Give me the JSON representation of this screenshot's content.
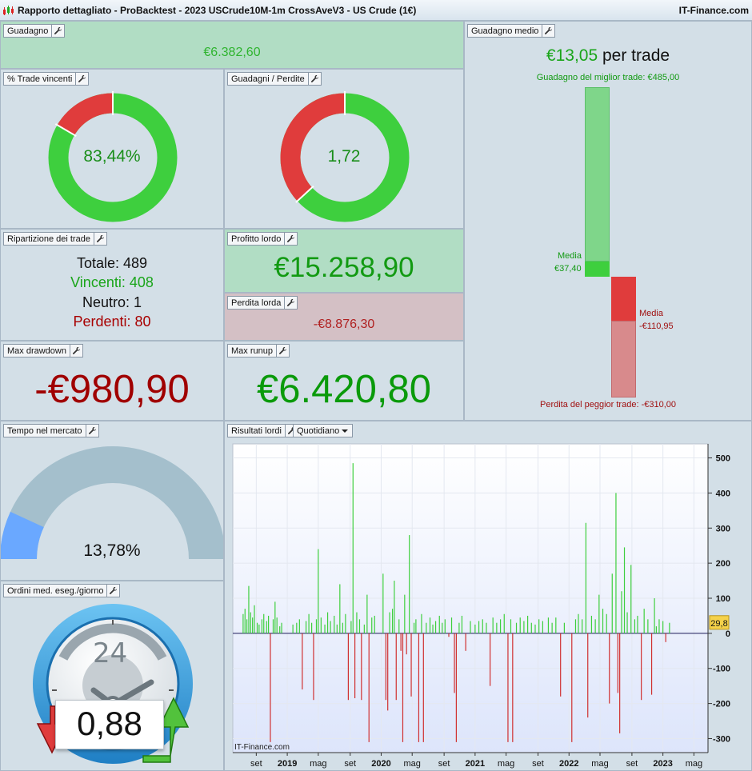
{
  "window": {
    "title": "Rapporto dettagliato - ProBacktest - 2023 USCrude10M-1m CrossAveV3 - US Crude (1€)",
    "brand": "IT-Finance.com"
  },
  "guadagno": {
    "label": "Guadagno",
    "value": "€6.382,60"
  },
  "trade_vincenti": {
    "label": "% Trade vincenti",
    "value": "83,44%",
    "win_fraction": 0.8344
  },
  "guadagni_perdite": {
    "label": "Guadagni / Perdite",
    "value": "1,72",
    "green_fraction": 0.632
  },
  "guadagno_medio": {
    "label": "Guadagno medio",
    "value": "€13,05",
    "suffix": "per trade",
    "best_label": "Guadagno del miglior trade: €485,00",
    "worst_label": "Perdita del peggior trade: -€310,00",
    "media_gain_label": "Media",
    "media_gain_value": "€37,40",
    "media_loss_label": "Media",
    "media_loss_value": "-€110,95",
    "best": 485,
    "avg_gain": 37.4,
    "avg_loss": -110.95,
    "worst": -310
  },
  "ripartizione": {
    "label": "Ripartizione dei trade",
    "totale": "Totale: 489",
    "vincenti": "Vincenti: 408",
    "neutro": "Neutro: 1",
    "perdenti": "Perdenti: 80"
  },
  "profitto_lordo": {
    "label": "Profitto lordo",
    "value": "€15.258,90"
  },
  "perdita_lorda": {
    "label": "Perdita lorda",
    "value": "-€8.876,30"
  },
  "max_drawdown": {
    "label": "Max drawdown",
    "value": "-€980,90"
  },
  "max_runup": {
    "label": "Max runup",
    "value": "€6.420,80"
  },
  "tempo_mercato": {
    "label": "Tempo nel mercato",
    "value": "13,78%",
    "fraction": 0.1378
  },
  "ordini": {
    "label": "Ordini med. eseg./giorno",
    "value": "0,88",
    "clock_number": "24"
  },
  "risultati": {
    "label": "Risultati lordi",
    "period": "Quotidiano",
    "watermark": "IT-Finance.com"
  },
  "colors": {
    "green": "#3ecf3e",
    "red": "#e03c3c",
    "dark_green": "#0a9a0a",
    "dark_red": "#a00000",
    "blue": "#6aa8ff",
    "gauge": "#a4bfcc"
  },
  "chart_data": {
    "type": "bar",
    "title": "",
    "ylim": [
      -340,
      540
    ],
    "yticks": [
      500,
      400,
      300,
      200,
      100,
      0,
      -100,
      -200,
      -300
    ],
    "ytick_labels": [
      "500",
      "400",
      "300",
      "200",
      "100",
      "0",
      "-100",
      "-200",
      "-300"
    ],
    "last_value": "29,8",
    "x_ticks": [
      {
        "label": "set",
        "bold": false,
        "t": 2018.67
      },
      {
        "label": "2019",
        "bold": true,
        "t": 2019.0
      },
      {
        "label": "mag",
        "bold": false,
        "t": 2019.33
      },
      {
        "label": "set",
        "bold": false,
        "t": 2019.67
      },
      {
        "label": "2020",
        "bold": true,
        "t": 2020.0
      },
      {
        "label": "mag",
        "bold": false,
        "t": 2020.33
      },
      {
        "label": "set",
        "bold": false,
        "t": 2020.67
      },
      {
        "label": "2021",
        "bold": true,
        "t": 2021.0
      },
      {
        "label": "mag",
        "bold": false,
        "t": 2021.33
      },
      {
        "label": "set",
        "bold": false,
        "t": 2021.67
      },
      {
        "label": "2022",
        "bold": true,
        "t": 2022.0
      },
      {
        "label": "mag",
        "bold": false,
        "t": 2022.33
      },
      {
        "label": "set",
        "bold": false,
        "t": 2022.67
      },
      {
        "label": "2023",
        "bold": true,
        "t": 2023.0
      },
      {
        "label": "mag",
        "bold": false,
        "t": 2023.33
      }
    ],
    "x_range": [
      2018.42,
      2023.48
    ],
    "points": [
      [
        2018.53,
        55
      ],
      [
        2018.55,
        70
      ],
      [
        2018.57,
        40
      ],
      [
        2018.59,
        135
      ],
      [
        2018.61,
        60
      ],
      [
        2018.63,
        45
      ],
      [
        2018.65,
        80
      ],
      [
        2018.68,
        30
      ],
      [
        2018.7,
        25
      ],
      [
        2018.73,
        40
      ],
      [
        2018.75,
        55
      ],
      [
        2018.78,
        35
      ],
      [
        2018.8,
        50
      ],
      [
        2018.82,
        -310
      ],
      [
        2018.85,
        40
      ],
      [
        2018.87,
        90
      ],
      [
        2018.89,
        45
      ],
      [
        2018.92,
        20
      ],
      [
        2018.94,
        30
      ],
      [
        2019.06,
        25
      ],
      [
        2019.1,
        30
      ],
      [
        2019.13,
        40
      ],
      [
        2019.16,
        -160
      ],
      [
        2019.2,
        35
      ],
      [
        2019.23,
        55
      ],
      [
        2019.26,
        30
      ],
      [
        2019.28,
        -190
      ],
      [
        2019.31,
        40
      ],
      [
        2019.33,
        240
      ],
      [
        2019.36,
        45
      ],
      [
        2019.4,
        25
      ],
      [
        2019.43,
        60
      ],
      [
        2019.46,
        35
      ],
      [
        2019.5,
        50
      ],
      [
        2019.53,
        25
      ],
      [
        2019.56,
        140
      ],
      [
        2019.59,
        30
      ],
      [
        2019.62,
        55
      ],
      [
        2019.65,
        -190
      ],
      [
        2019.68,
        35
      ],
      [
        2019.7,
        485
      ],
      [
        2019.72,
        -185
      ],
      [
        2019.74,
        60
      ],
      [
        2019.77,
        40
      ],
      [
        2019.79,
        -190
      ],
      [
        2019.82,
        25
      ],
      [
        2019.85,
        110
      ],
      [
        2019.87,
        -310
      ],
      [
        2019.9,
        45
      ],
      [
        2019.93,
        50
      ],
      [
        2020.02,
        170
      ],
      [
        2020.05,
        -190
      ],
      [
        2020.07,
        -220
      ],
      [
        2020.09,
        60
      ],
      [
        2020.12,
        70
      ],
      [
        2020.14,
        150
      ],
      [
        2020.16,
        -190
      ],
      [
        2020.19,
        40
      ],
      [
        2020.21,
        -50
      ],
      [
        2020.23,
        -310
      ],
      [
        2020.25,
        110
      ],
      [
        2020.27,
        -60
      ],
      [
        2020.3,
        280
      ],
      [
        2020.32,
        -180
      ],
      [
        2020.35,
        30
      ],
      [
        2020.37,
        40
      ],
      [
        2020.4,
        -310
      ],
      [
        2020.43,
        55
      ],
      [
        2020.45,
        -310
      ],
      [
        2020.48,
        30
      ],
      [
        2020.52,
        45
      ],
      [
        2020.55,
        25
      ],
      [
        2020.58,
        35
      ],
      [
        2020.62,
        50
      ],
      [
        2020.65,
        30
      ],
      [
        2020.68,
        40
      ],
      [
        2020.72,
        -10
      ],
      [
        2020.75,
        45
      ],
      [
        2020.78,
        -170
      ],
      [
        2020.8,
        -310
      ],
      [
        2020.83,
        30
      ],
      [
        2020.86,
        50
      ],
      [
        2020.9,
        -50
      ],
      [
        2020.95,
        35
      ],
      [
        2021.0,
        25
      ],
      [
        2021.04,
        35
      ],
      [
        2021.08,
        40
      ],
      [
        2021.12,
        30
      ],
      [
        2021.16,
        -150
      ],
      [
        2021.19,
        45
      ],
      [
        2021.23,
        30
      ],
      [
        2021.27,
        40
      ],
      [
        2021.31,
        55
      ],
      [
        2021.35,
        -310
      ],
      [
        2021.38,
        40
      ],
      [
        2021.4,
        -310
      ],
      [
        2021.44,
        30
      ],
      [
        2021.48,
        45
      ],
      [
        2021.52,
        35
      ],
      [
        2021.56,
        50
      ],
      [
        2021.6,
        30
      ],
      [
        2021.64,
        25
      ],
      [
        2021.68,
        40
      ],
      [
        2021.72,
        35
      ],
      [
        2021.78,
        45
      ],
      [
        2021.82,
        30
      ],
      [
        2021.86,
        45
      ],
      [
        2021.91,
        -180
      ],
      [
        2021.95,
        30
      ],
      [
        2022.03,
        -310
      ],
      [
        2022.07,
        40
      ],
      [
        2022.1,
        55
      ],
      [
        2022.14,
        40
      ],
      [
        2022.18,
        315
      ],
      [
        2022.2,
        -240
      ],
      [
        2022.24,
        50
      ],
      [
        2022.28,
        40
      ],
      [
        2022.32,
        110
      ],
      [
        2022.36,
        70
      ],
      [
        2022.4,
        55
      ],
      [
        2022.43,
        -200
      ],
      [
        2022.46,
        170
      ],
      [
        2022.5,
        400
      ],
      [
        2022.52,
        -170
      ],
      [
        2022.54,
        -285
      ],
      [
        2022.56,
        120
      ],
      [
        2022.59,
        245
      ],
      [
        2022.62,
        60
      ],
      [
        2022.66,
        195
      ],
      [
        2022.7,
        40
      ],
      [
        2022.73,
        50
      ],
      [
        2022.77,
        -190
      ],
      [
        2022.8,
        70
      ],
      [
        2022.84,
        40
      ],
      [
        2022.88,
        -175
      ],
      [
        2022.91,
        100
      ],
      [
        2022.93,
        20
      ],
      [
        2022.96,
        40
      ],
      [
        2023.0,
        35
      ],
      [
        2023.03,
        -25
      ],
      [
        2023.07,
        30
      ]
    ]
  }
}
